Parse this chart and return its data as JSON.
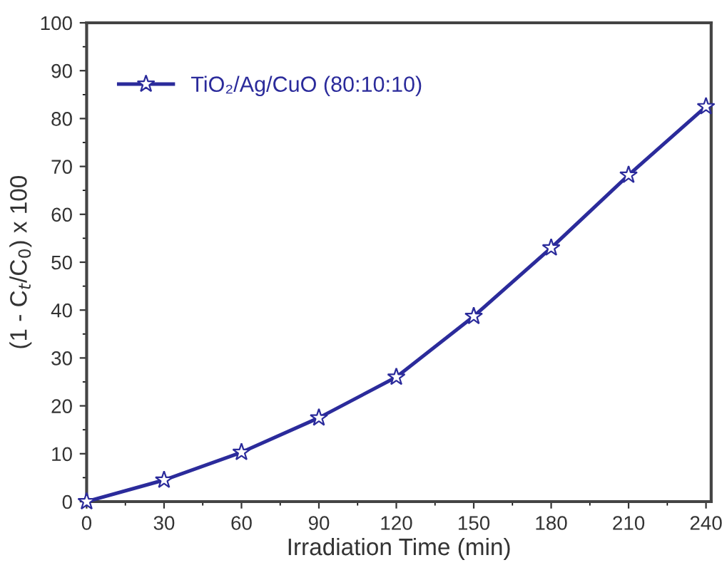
{
  "chart_data": {
    "type": "line",
    "xlabel": "Irradiation Time (min)",
    "ylabel": "(1 - C$_{t}$/C$_{0}$) x 100",
    "x": [
      0,
      30,
      60,
      90,
      120,
      150,
      180,
      210,
      240
    ],
    "series": [
      {
        "name": "TiO₂/Ag/CuO (80:10:10)",
        "color": "#2b2b9b",
        "values": [
          0,
          4.5,
          10.3,
          17.5,
          26,
          38.7,
          53,
          68.2,
          82.5
        ]
      }
    ],
    "xlim": [
      0,
      242
    ],
    "ylim": [
      0,
      100
    ],
    "xticks": [
      0,
      30,
      60,
      90,
      120,
      150,
      180,
      210,
      240
    ],
    "yticks": [
      0,
      10,
      20,
      30,
      40,
      50,
      60,
      70,
      80,
      90,
      100
    ],
    "marker": "star",
    "line_style": "solid",
    "grid": false,
    "legend": "top left"
  }
}
